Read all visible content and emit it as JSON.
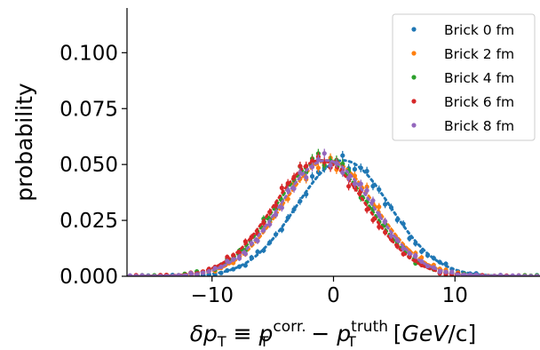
{
  "chart_data": {
    "type": "scatter",
    "xlabel_parts": {
      "delta": "δ",
      "p": "p",
      "sub_T": "T",
      "equiv": " ≡ ",
      "sup_corr": "corr.",
      "minus": " − ",
      "sup_truth": "truth",
      "unit_open": " [",
      "unit": "GeV",
      "unit_close": "/c]"
    },
    "ylabel": "probability",
    "xlim": [
      -17,
      17
    ],
    "ylim": [
      0,
      0.12
    ],
    "xticks": [
      -10,
      0,
      10
    ],
    "xtick_labels": [
      "−10",
      "0",
      "10"
    ],
    "yticks": [
      0,
      0.025,
      0.05,
      0.075,
      0.1
    ],
    "ytick_labels": [
      "0.000",
      "0.025",
      "0.050",
      "0.075",
      "0.100"
    ],
    "legend_position": "top-right",
    "bin_width": 0.5,
    "x_start": -16.75,
    "n_points": 68,
    "series": [
      {
        "name": "Brick 0 fm",
        "color": "#1f77b4",
        "mean": 0.8,
        "sigma": 3.85
      },
      {
        "name": "Brick 2 fm",
        "color": "#ff7f0e",
        "mean": -0.4,
        "sigma": 3.85
      },
      {
        "name": "Brick 4 fm",
        "color": "#2ca02c",
        "mean": -0.9,
        "sigma": 3.85
      },
      {
        "name": "Brick 6 fm",
        "color": "#d62728",
        "mean": -1.1,
        "sigma": 3.85
      },
      {
        "name": "Brick 8 fm",
        "color": "#9467bd",
        "mean": -0.6,
        "sigma": 3.85
      }
    ]
  }
}
